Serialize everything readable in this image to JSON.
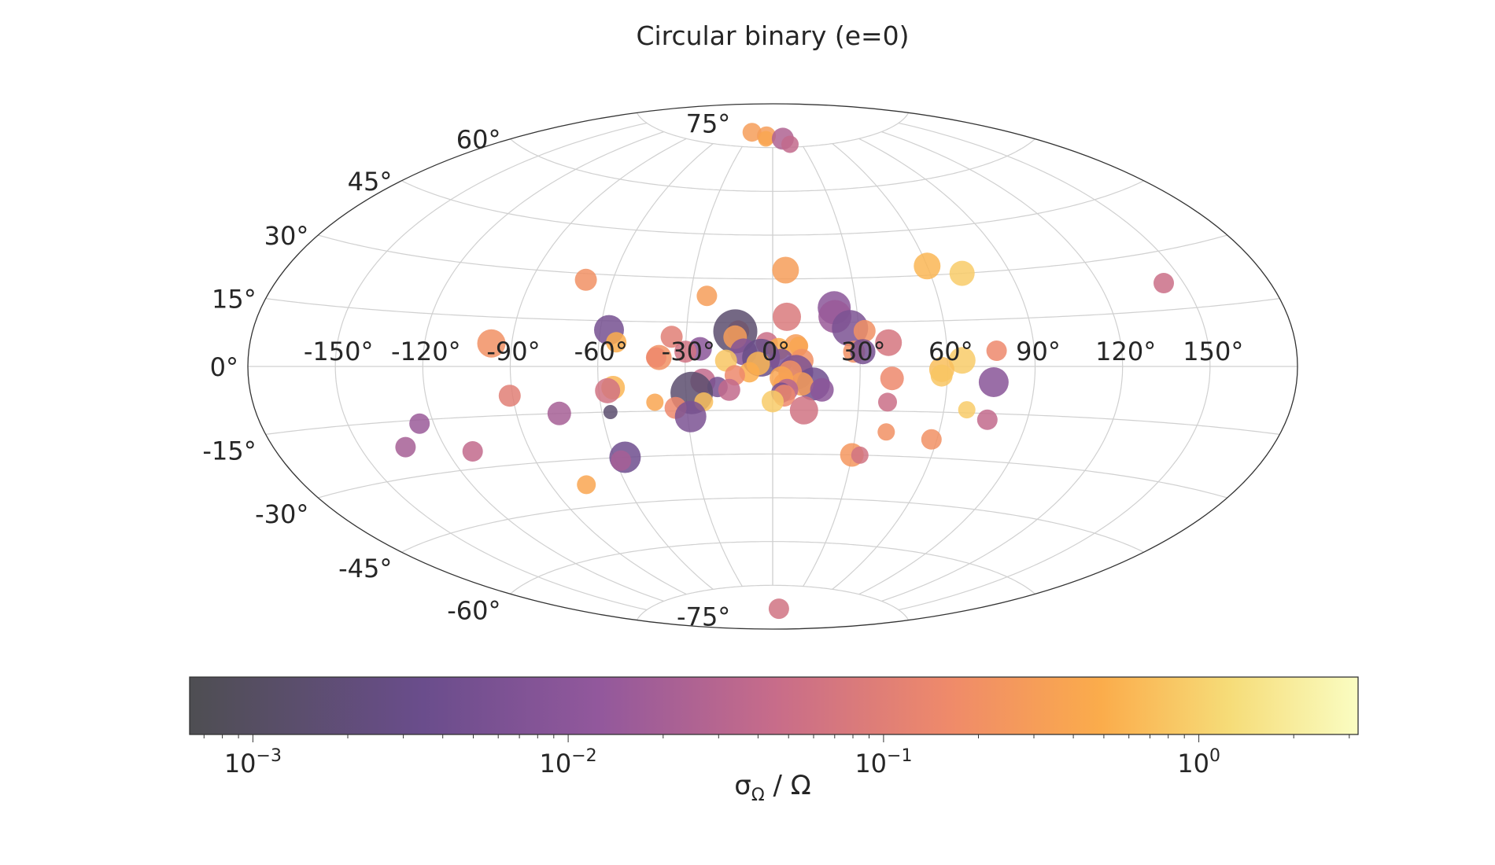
{
  "chart_data": {
    "type": "scatter",
    "projection": "aitoff",
    "title": "Circular binary (e=0)",
    "grid": true,
    "xlabel": "",
    "ylabel": "",
    "x_tick_labels": [
      "-150°",
      "-120°",
      "-90°",
      "-60°",
      "-30°",
      "0°",
      "30°",
      "60°",
      "90°",
      "120°",
      "150°"
    ],
    "x_ticks": [
      -150,
      -120,
      -90,
      -60,
      -30,
      0,
      30,
      60,
      90,
      120,
      150
    ],
    "y_tick_labels": [
      "-75°",
      "-60°",
      "-45°",
      "-30°",
      "-15°",
      "0°",
      "15°",
      "30°",
      "45°",
      "60°",
      "75°"
    ],
    "y_ticks": [
      -75,
      -60,
      -45,
      -30,
      -15,
      0,
      15,
      30,
      45,
      60,
      75
    ],
    "colorbar": {
      "label_main": "σ",
      "label_sub": "Ω",
      "label_tail": " / Ω",
      "scale": "log",
      "range": [
        0.00063,
        3.2
      ],
      "colormap": "inferno-like",
      "ticks": [
        {
          "value": 0.001,
          "base": "10",
          "exp": "−3"
        },
        {
          "value": 0.01,
          "base": "10",
          "exp": "−2"
        },
        {
          "value": 0.1,
          "base": "10",
          "exp": "−1"
        },
        {
          "value": 1,
          "base": "10",
          "exp": "0"
        }
      ]
    },
    "points": [
      {
        "lon": -29,
        "lat": 80,
        "c": 0.3,
        "s": 12
      },
      {
        "lon": -8,
        "lat": 79,
        "c": 0.3,
        "s": 12
      },
      {
        "lon": -8,
        "lat": 78,
        "c": 0.4,
        "s": 10
      },
      {
        "lon": 12,
        "lat": 78,
        "c": 0.025,
        "s": 14
      },
      {
        "lon": 18,
        "lat": 76,
        "c": 0.04,
        "s": 11
      },
      {
        "lon": 5,
        "lat": 33,
        "c": 0.3,
        "s": 17
      },
      {
        "lon": 60,
        "lat": 33,
        "c": 0.6,
        "s": 17
      },
      {
        "lon": 72,
        "lat": 30,
        "c": 0.9,
        "s": 16
      },
      {
        "lon": -70,
        "lat": 28,
        "c": 0.2,
        "s": 14
      },
      {
        "lon": -24,
        "lat": 24,
        "c": 0.3,
        "s": 13
      },
      {
        "lon": 22,
        "lat": 20,
        "c": 0.01,
        "s": 21
      },
      {
        "lon": 22,
        "lat": 17,
        "c": 0.015,
        "s": 21
      },
      {
        "lon": 5,
        "lat": 17,
        "c": 0.08,
        "s": 18
      },
      {
        "lon": 143,
        "lat": 22,
        "c": 0.05,
        "s": 13
      },
      {
        "lon": -12,
        "lat": 12,
        "c": 0.15,
        "s": 14
      },
      {
        "lon": -13,
        "lat": 12,
        "c": 0.0015,
        "s": 28
      },
      {
        "lon": 27,
        "lat": 13,
        "c": 0.006,
        "s": 23
      },
      {
        "lon": 32,
        "lat": 12,
        "c": 0.2,
        "s": 14
      },
      {
        "lon": -57,
        "lat": 12,
        "c": 0.005,
        "s": 19
      },
      {
        "lon": -13,
        "lat": 10,
        "c": 0.3,
        "s": 15
      },
      {
        "lon": -35,
        "lat": 10,
        "c": 0.1,
        "s": 14
      },
      {
        "lon": 40,
        "lat": 8,
        "c": 0.07,
        "s": 17
      },
      {
        "lon": -54,
        "lat": 8,
        "c": 0.5,
        "s": 13
      },
      {
        "lon": -97,
        "lat": 7,
        "c": 0.2,
        "s": 18
      },
      {
        "lon": -25,
        "lat": 6,
        "c": 0.01,
        "s": 15
      },
      {
        "lon": -30,
        "lat": 5,
        "c": 0.06,
        "s": 14
      },
      {
        "lon": -10,
        "lat": 5,
        "c": 0.008,
        "s": 17
      },
      {
        "lon": -2,
        "lat": 8,
        "c": 0.05,
        "s": 14
      },
      {
        "lon": 28,
        "lat": 5,
        "c": 0.2,
        "s": 14
      },
      {
        "lon": 31,
        "lat": 5,
        "c": 0.005,
        "s": 16
      },
      {
        "lon": 8,
        "lat": 7,
        "c": 0.3,
        "s": 15
      },
      {
        "lon": 9,
        "lat": 7,
        "c": 0.4,
        "s": 12
      },
      {
        "lon": 2,
        "lat": 6,
        "c": 0.5,
        "s": 14
      },
      {
        "lon": -4,
        "lat": 3,
        "c": 0.003,
        "s": 24
      },
      {
        "lon": 3,
        "lat": 2,
        "c": 0.006,
        "s": 15
      },
      {
        "lon": 10,
        "lat": 2,
        "c": 0.2,
        "s": 15
      },
      {
        "lon": -16,
        "lat": 2,
        "c": 0.8,
        "s": 14
      },
      {
        "lon": -5,
        "lat": 1,
        "c": 0.6,
        "s": 15
      },
      {
        "lon": -39,
        "lat": 3,
        "c": 0.2,
        "s": 16
      },
      {
        "lon": -40,
        "lat": 3,
        "c": 0.15,
        "s": 13
      },
      {
        "lon": 77,
        "lat": 5,
        "c": 0.15,
        "s": 13
      },
      {
        "lon": 65,
        "lat": 2,
        "c": 0.9,
        "s": 17
      },
      {
        "lon": 58,
        "lat": -1,
        "c": 0.7,
        "s": 16
      },
      {
        "lon": 58,
        "lat": -3,
        "c": 0.8,
        "s": 14
      },
      {
        "lon": 76,
        "lat": -5,
        "c": 0.009,
        "s": 19
      },
      {
        "lon": 41,
        "lat": -4,
        "c": 0.15,
        "s": 15
      },
      {
        "lon": 8,
        "lat": -2,
        "c": 0.006,
        "s": 22
      },
      {
        "lon": 6,
        "lat": -2,
        "c": 0.2,
        "s": 15
      },
      {
        "lon": -8,
        "lat": -2,
        "c": 0.5,
        "s": 13
      },
      {
        "lon": -13,
        "lat": -3,
        "c": 0.15,
        "s": 13
      },
      {
        "lon": 14,
        "lat": -6,
        "c": 0.004,
        "s": 21
      },
      {
        "lon": 10,
        "lat": -6,
        "c": 0.3,
        "s": 15
      },
      {
        "lon": 4,
        "lat": -6,
        "c": 0.2,
        "s": 14
      },
      {
        "lon": 3,
        "lat": -4,
        "c": 0.4,
        "s": 15
      },
      {
        "lon": 5,
        "lat": -8,
        "c": 0.03,
        "s": 14
      },
      {
        "lon": 3,
        "lat": -9,
        "c": 0.005,
        "s": 13
      },
      {
        "lon": 4,
        "lat": -10,
        "c": 0.15,
        "s": 14
      },
      {
        "lon": 17,
        "lat": -8,
        "c": 0.01,
        "s": 15
      },
      {
        "lon": -24,
        "lat": -5,
        "c": 0.04,
        "s": 16
      },
      {
        "lon": -19,
        "lat": -7,
        "c": 0.005,
        "s": 13
      },
      {
        "lon": -15,
        "lat": -8,
        "c": 0.04,
        "s": 14
      },
      {
        "lon": -28,
        "lat": -9,
        "c": 0.0015,
        "s": 27
      },
      {
        "lon": -55,
        "lat": -7,
        "c": 0.6,
        "s": 15
      },
      {
        "lon": -57,
        "lat": -8,
        "c": 0.06,
        "s": 16
      },
      {
        "lon": -91,
        "lat": -9,
        "c": 0.1,
        "s": 14
      },
      {
        "lon": -41,
        "lat": -12,
        "c": 0.4,
        "s": 11
      },
      {
        "lon": -34,
        "lat": -14,
        "c": 0.15,
        "s": 14
      },
      {
        "lon": -24,
        "lat": -12,
        "c": 0.7,
        "s": 12
      },
      {
        "lon": 0,
        "lat": -12,
        "c": 0.9,
        "s": 14
      },
      {
        "lon": 40,
        "lat": -12,
        "c": 0.05,
        "s": 12
      },
      {
        "lon": -125,
        "lat": -16,
        "c": 0.015,
        "s": 13
      },
      {
        "lon": -75,
        "lat": -15,
        "c": 0.02,
        "s": 15
      },
      {
        "lon": -57,
        "lat": -15,
        "c": 0.0015,
        "s": 9
      },
      {
        "lon": -29,
        "lat": -17,
        "c": 0.006,
        "s": 20
      },
      {
        "lon": 11,
        "lat": -15,
        "c": 0.06,
        "s": 18
      },
      {
        "lon": 68,
        "lat": -14,
        "c": 0.9,
        "s": 11
      },
      {
        "lon": 76,
        "lat": -17,
        "c": 0.04,
        "s": 13
      },
      {
        "lon": 41,
        "lat": -22,
        "c": 0.2,
        "s": 11
      },
      {
        "lon": 58,
        "lat": -24,
        "c": 0.2,
        "s": 13
      },
      {
        "lon": -134,
        "lat": -22,
        "c": 0.02,
        "s": 13
      },
      {
        "lon": -111,
        "lat": -25,
        "c": 0.04,
        "s": 13
      },
      {
        "lon": -56,
        "lat": -30,
        "c": 0.004,
        "s": 20
      },
      {
        "lon": -58,
        "lat": -31,
        "c": 0.02,
        "s": 13
      },
      {
        "lon": 30,
        "lat": -30,
        "c": 0.25,
        "s": 15
      },
      {
        "lon": 33,
        "lat": -30,
        "c": 0.06,
        "s": 11
      },
      {
        "lon": -76,
        "lat": -38,
        "c": 0.4,
        "s": 12
      },
      {
        "lon": 12,
        "lat": -83,
        "c": 0.06,
        "s": 13
      }
    ]
  }
}
